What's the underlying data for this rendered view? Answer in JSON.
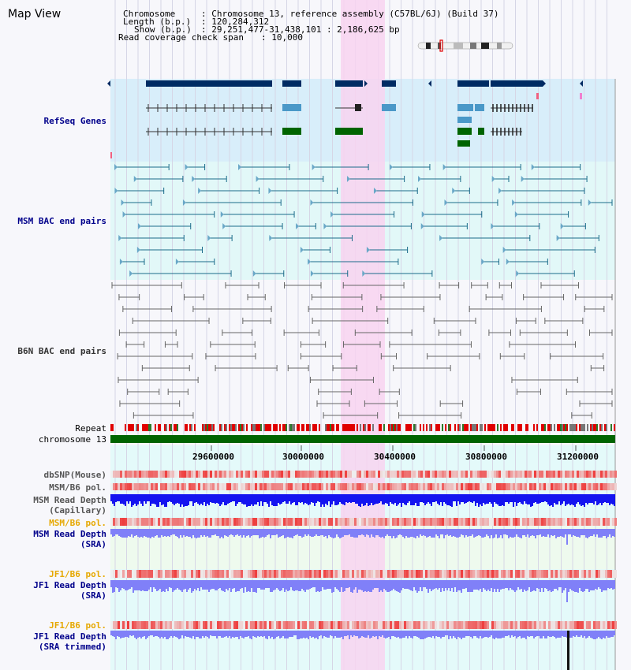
{
  "app": {
    "title": "Map View"
  },
  "header": {
    "chromosome_key": "Chromosome",
    "chromosome_val": ": Chromosome 13, reference assembly (C57BL/6J) (Build 37)",
    "length_key": "Length (b.p.)",
    "length_val": ": 120,284,312",
    "show_key": "Show (b.p.)",
    "show_val": ": 29,251,477-31,438,101 : 2,186,625 bp",
    "coverage_key": "Read coverage check span",
    "coverage_val": ": 10,000"
  },
  "tracks": {
    "refseq": "RefSeq Genes",
    "msm_bac": "MSM BAC end pairs",
    "b6n_bac": "B6N BAC end pairs",
    "repeat": "Repeat",
    "chromosome": "chromosome 13",
    "dbsnp": "dbSNP(Mouse)",
    "msm_b6_pol_1": "MSM/B6 pol.",
    "msm_read_depth_cap_1": "MSM Read Depth",
    "msm_read_depth_cap_2": "(Capillary)",
    "msm_b6_pol_2": "MSM/B6 pol.",
    "msm_read_depth_sra_1": "MSM Read Depth",
    "msm_read_depth_sra_2": "(SRA)",
    "jf1_b6_pol_1": "JF1/B6 pol.",
    "jf1_read_depth_sra_1": "JF1 Read Depth",
    "jf1_read_depth_sra_2": "(SRA)",
    "jf1_b6_pol_2": "JF1/B6 pol.",
    "jf1_read_depth_trim_1": "JF1 Read Depth",
    "jf1_read_depth_trim_2": "(SRA trimmed)"
  },
  "axis": {
    "ticks": [
      "29600000",
      "30000000",
      "30400000",
      "30800000",
      "31200000"
    ]
  },
  "colors": {
    "label_blue": "#00008b",
    "label_orange": "#e6a800",
    "refseq_bg": "#d8eefa",
    "msm_bac_bg": "#e2f8f8",
    "highlight": "#f8d4f0",
    "gene_dark": "#002b63",
    "gene_mid": "#4a98c8",
    "gene_green": "#006400",
    "bac_line": "#1b6b8a",
    "b6n_line": "#666666",
    "depth_blue": "#1414f0",
    "depth_light": "#8080f8"
  }
}
